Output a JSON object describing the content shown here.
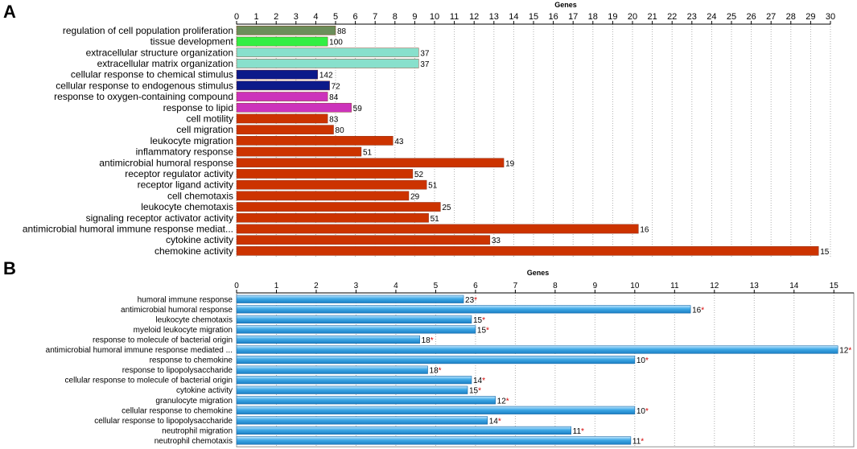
{
  "chart_data": [
    {
      "panel": "A",
      "type": "bar",
      "orientation": "horizontal",
      "xlabel": "Genes",
      "xlim": [
        0,
        30
      ],
      "xticks": [
        "0",
        "1",
        "2",
        "3",
        "4",
        "5",
        "6",
        "7",
        "8",
        "9",
        "10",
        "11",
        "12",
        "13",
        "14",
        "15",
        "16",
        "17",
        "18",
        "19",
        "20",
        "21",
        "22",
        "23",
        "24",
        "25",
        "26",
        "27",
        "28",
        "29",
        "30"
      ],
      "categories": [
        "regulation of cell population proliferation",
        "tissue development",
        "extracellular structure organization",
        "extracellular matrix organization",
        "cellular response to chemical stimulus",
        "cellular response to endogenous stimulus",
        "response to oxygen-containing compound",
        "response to lipid",
        "cell motility",
        "cell migration",
        "leukocyte migration",
        "inflammatory response",
        "antimicrobial humoral response",
        "receptor regulator activity",
        "receptor ligand activity",
        "cell chemotaxis",
        "leukocyte chemotaxis",
        "signaling receptor activator activity",
        "antimicrobial humoral immune response mediat...",
        "cytokine activity",
        "chemokine activity"
      ],
      "values": [
        5,
        4.6,
        9.2,
        9.2,
        4.1,
        4.7,
        4.6,
        5.8,
        4.6,
        4.9,
        7.9,
        6.3,
        13.5,
        8.9,
        9.6,
        8.7,
        10.3,
        9.7,
        20.3,
        12.8,
        29.4
      ],
      "labels": [
        "88",
        "100",
        "37",
        "37",
        "142",
        "72",
        "84",
        "59",
        "83",
        "80",
        "43",
        "51",
        "19",
        "52",
        "51",
        "29",
        "25",
        "51",
        "16",
        "33",
        "15"
      ],
      "colors": [
        "#6b8e5a",
        "#33ee44",
        "#88e0cc",
        "#88e0cc",
        "#0c1a8a",
        "#0c1a8a",
        "#cc33bb",
        "#cc33bb",
        "#cc3300",
        "#cc3300",
        "#cc3300",
        "#cc3300",
        "#cc3300",
        "#cc3300",
        "#cc3300",
        "#cc3300",
        "#cc3300",
        "#cc3300",
        "#cc3300",
        "#cc3300",
        "#cc3300"
      ]
    },
    {
      "panel": "B",
      "type": "bar",
      "orientation": "horizontal",
      "xlabel": "Genes",
      "xlim": [
        0,
        15.5
      ],
      "xticks": [
        "0",
        "1",
        "2",
        "3",
        "4",
        "5",
        "6",
        "7",
        "8",
        "9",
        "10",
        "11",
        "12",
        "13",
        "14",
        "15"
      ],
      "categories": [
        "humoral immune response",
        "antimicrobial humoral response",
        "leukocyte chemotaxis",
        "myeloid leukocyte migration",
        "response to molecule of bacterial origin",
        "antimicrobial humoral immune response mediated ...",
        "response to chemokine",
        "response to lipopolysaccharide",
        "cellular response to molecule of bacterial origin",
        "cytokine activity",
        "granulocyte migration",
        "cellular response to chemokine",
        "cellular response to lipopolysaccharide",
        "neutrophil migration",
        "neutrophil chemotaxis"
      ],
      "values": [
        5.7,
        11.4,
        5.9,
        6.0,
        4.6,
        15.1,
        10.0,
        4.8,
        5.9,
        5.8,
        6.5,
        10.0,
        6.3,
        8.4,
        9.9
      ],
      "labels": [
        "23",
        "16",
        "15",
        "15",
        "18",
        "12",
        "10",
        "18",
        "14",
        "15",
        "12",
        "10",
        "14",
        "11",
        "11"
      ],
      "bar_color": "#3fa9e6",
      "star": "*",
      "star_color": "#d40000"
    }
  ],
  "panels": {
    "a_letter": "A",
    "b_letter": "B"
  }
}
